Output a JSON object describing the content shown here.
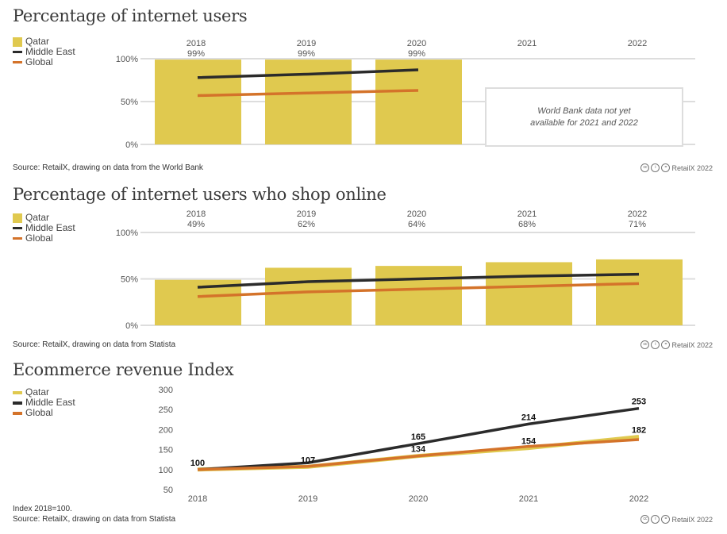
{
  "colors": {
    "qatar": "#e0c94f",
    "middle_east": "#2b2b2b",
    "global": "#d4732a",
    "grid": "#dddddd"
  },
  "legend": [
    "Qatar",
    "Middle East",
    "Global"
  ],
  "license": {
    "text": "RetailX 2022",
    "icons": [
      "cc-icon",
      "by-icon",
      "nd-icon"
    ]
  },
  "chart_data": [
    {
      "type": "bar",
      "title": "Percentage of internet users",
      "categories": [
        "2018",
        "2019",
        "2020",
        "2021",
        "2022"
      ],
      "y_ticks": [
        "100%",
        "50%",
        "0%"
      ],
      "ylim": [
        0,
        100
      ],
      "series": [
        {
          "name": "Qatar",
          "kind": "bar",
          "values": [
            99,
            99,
            99,
            null,
            null
          ],
          "labels": [
            "99%",
            "99%",
            "99%",
            "",
            ""
          ]
        },
        {
          "name": "Middle East",
          "kind": "line",
          "values": [
            78,
            82,
            87,
            null,
            null
          ]
        },
        {
          "name": "Global",
          "kind": "line",
          "values": [
            57,
            60,
            63,
            null,
            null
          ]
        }
      ],
      "note": "World Bank data not yet available for 2021 and 2022",
      "source": "Source: RetailX, drawing on data from the World Bank"
    },
    {
      "type": "bar",
      "title": "Percentage of internet users who shop online",
      "categories": [
        "2018",
        "2019",
        "2020",
        "2021",
        "2022"
      ],
      "y_ticks": [
        "100%",
        "50%",
        "0%"
      ],
      "ylim": [
        0,
        100
      ],
      "series": [
        {
          "name": "Qatar",
          "kind": "bar",
          "values": [
            49,
            62,
            64,
            68,
            71
          ],
          "labels": [
            "49%",
            "62%",
            "64%",
            "68%",
            "71%"
          ]
        },
        {
          "name": "Middle East",
          "kind": "line",
          "values": [
            41,
            47,
            50,
            53,
            55
          ]
        },
        {
          "name": "Global",
          "kind": "line",
          "values": [
            31,
            36,
            39,
            42,
            45
          ]
        }
      ],
      "source": "Source: RetailX, drawing on data from Statista"
    },
    {
      "type": "line",
      "title": "Ecommerce revenue Index",
      "categories": [
        "2018",
        "2019",
        "2020",
        "2021",
        "2022"
      ],
      "y_ticks": [
        "300",
        "250",
        "200",
        "150",
        "100",
        "50"
      ],
      "ylim": [
        50,
        300
      ],
      "series": [
        {
          "name": "Qatar",
          "kind": "line",
          "values": [
            100,
            107,
            134,
            154,
            182
          ],
          "labels": [
            "100",
            "107",
            "134",
            "154",
            "182"
          ]
        },
        {
          "name": "Middle East",
          "kind": "line",
          "values": [
            100,
            117,
            165,
            214,
            253
          ],
          "labels": [
            "",
            "",
            "165",
            "214",
            "253"
          ]
        },
        {
          "name": "Global",
          "kind": "line",
          "values": [
            100,
            108,
            134,
            158,
            175
          ]
        }
      ],
      "footnote": "Index 2018=100.",
      "source": "Source: RetailX, drawing on data from Statista"
    }
  ]
}
